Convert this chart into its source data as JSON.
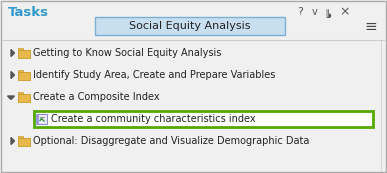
{
  "title": "Tasks",
  "title_color": "#3399CC",
  "header_text": "Social Equity Analysis",
  "header_bg": "#C8DFF0",
  "header_border": "#7BAFD4",
  "bg_color": "#F0F0F0",
  "panel_border": "#AAAAAA",
  "items": [
    {
      "level": 1,
      "text": "Getting to Know Social Equity Analysis",
      "expanded": false,
      "folder": true
    },
    {
      "level": 1,
      "text": "Identify Study Area, Create and Prepare Variables",
      "expanded": false,
      "folder": true
    },
    {
      "level": 1,
      "text": "Create a Composite Index",
      "expanded": true,
      "folder": true
    },
    {
      "level": 2,
      "text": "Create a community characteristics index",
      "expanded": false,
      "folder": false,
      "highlighted": true
    },
    {
      "level": 1,
      "text": "Optional: Disaggregate and Visualize Demographic Data",
      "expanded": false,
      "folder": true
    }
  ],
  "text_color": "#222222",
  "highlight_border": "#55AA00",
  "highlight_bg": "#FFFFFF",
  "folder_color": "#E8B84B",
  "folder_border": "#C49A28",
  "separator_color": "#CCCCCC",
  "toolbar_color": "#555555",
  "figwidth": 3.87,
  "figheight": 1.73,
  "dpi": 100
}
